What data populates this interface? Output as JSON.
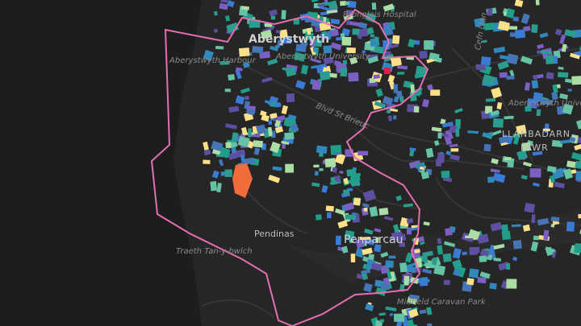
{
  "labels": {
    "hospital": "Bronglais Hospital",
    "town": "Aberystwyth",
    "harbour": "Aberystwyth Harbour",
    "university_west": "Aberystwyth University",
    "university_east": "Aberystwyth University",
    "road": "Blvd St Brieuc",
    "cefn": "Cefn Llan",
    "llanbadarn_1": "LLANBADARN",
    "llanbadarn_2": "FAWR",
    "penparcau": "Penparcau",
    "pendinas": "Pendinas",
    "beach": "Traeth Tan-y-bwlch",
    "caravan": "Midfield Caravan Park"
  }
}
